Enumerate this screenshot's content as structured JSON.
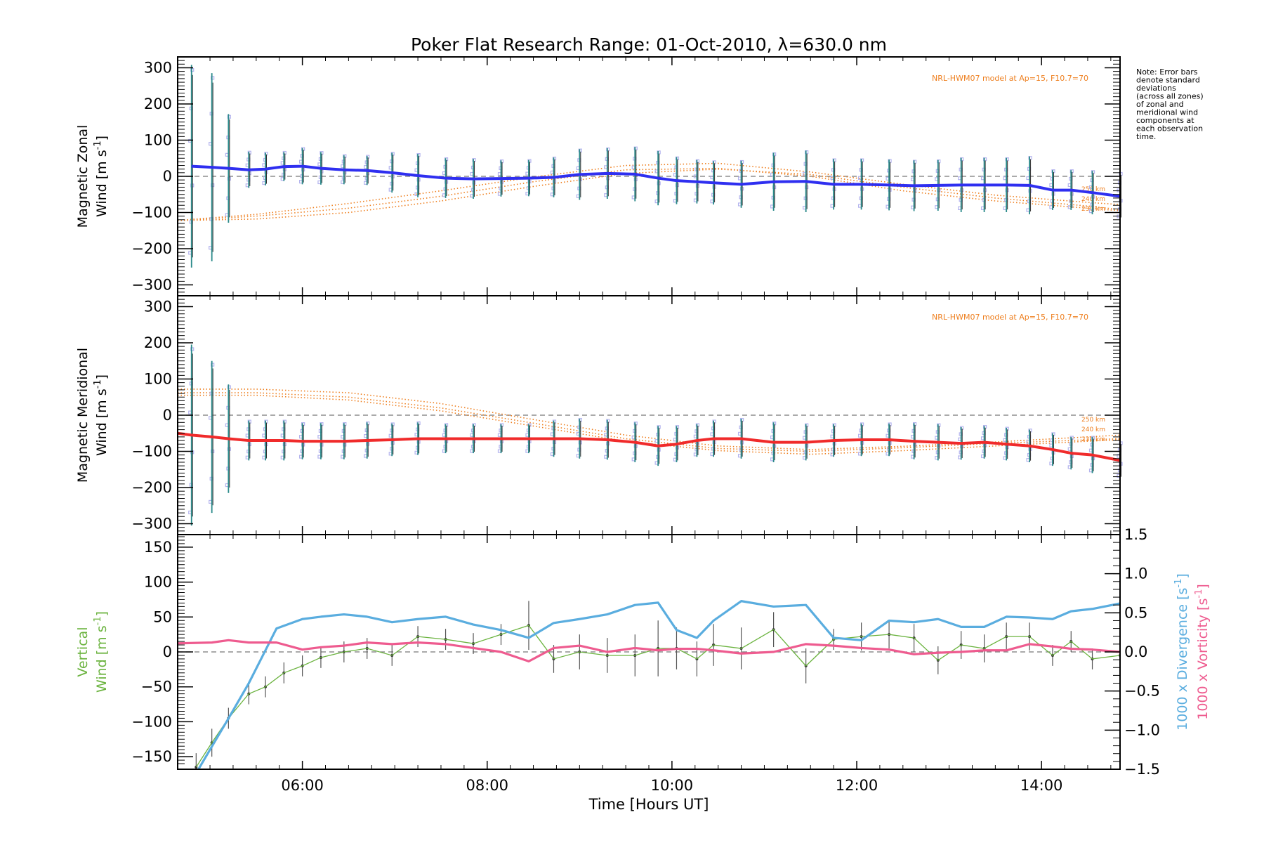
{
  "title": "Poker Flat Research Range: 01-Oct-2010, λ=630.0 nm",
  "note": [
    "Note: Error bars",
    "denote standard",
    "deviations",
    "(across all zones)",
    "of zonal and",
    "meridional wind",
    "components at",
    "each observation",
    "time."
  ],
  "colors": {
    "zonal": "#2f2ff0",
    "meridional": "#f02b2b",
    "model": "#ee7f1f",
    "vertical": "#6bb33f",
    "divergence": "#5aaddf",
    "vorticity": "#ee5b8f",
    "errorbar": "#555555",
    "scatter": "#b4b4ee"
  },
  "chart_data": [
    {
      "type": "line",
      "id": "zonal",
      "ylabel_line1": "Magnetic Zonal",
      "ylabel_line2": "Wind [m s",
      "ylabel_sup": "-1",
      "ylabel_close": "]",
      "ylim": [
        -330,
        330
      ],
      "xlim": [
        4.65,
        14.85
      ],
      "yticks": [
        300,
        200,
        100,
        0,
        -100,
        -200,
        -300
      ],
      "model_label": "NRL-HWM07 model at Ap=15, F10.7=70",
      "model_heights": [
        "250 km",
        "240 km",
        "230 km"
      ],
      "x": [
        4.8,
        5.02,
        5.2,
        5.42,
        5.6,
        5.8,
        6.0,
        6.2,
        6.45,
        6.7,
        6.97,
        7.25,
        7.55,
        7.85,
        8.15,
        8.45,
        8.72,
        9.0,
        9.3,
        9.6,
        9.85,
        10.05,
        10.27,
        10.45,
        10.75,
        11.1,
        11.45,
        11.75,
        12.05,
        12.35,
        12.62,
        12.88,
        13.13,
        13.38,
        13.62,
        13.87,
        14.12,
        14.32,
        14.55,
        14.85
      ],
      "values": [
        28,
        25,
        22,
        18,
        20,
        27,
        28,
        22,
        18,
        16,
        10,
        2,
        -5,
        -7,
        -6,
        -5,
        -3,
        5,
        8,
        6,
        -5,
        -12,
        -15,
        -18,
        -22,
        -15,
        -14,
        -22,
        -22,
        -24,
        -26,
        -25,
        -24,
        -24,
        -24,
        -25,
        -38,
        -38,
        -45,
        -55
      ],
      "errors": [
        280,
        260,
        150,
        50,
        45,
        40,
        50,
        45,
        40,
        40,
        55,
        60,
        55,
        55,
        50,
        50,
        55,
        70,
        70,
        75,
        75,
        65,
        60,
        60,
        65,
        80,
        85,
        70,
        70,
        70,
        70,
        70,
        75,
        75,
        75,
        80,
        55,
        55,
        60,
        65
      ],
      "model_series": [
        {
          "x": [
            4.65,
            5.5,
            6.5,
            7.5,
            8.5,
            9.5,
            10.5,
            11.5,
            12.5,
            13.5,
            14.5,
            14.85
          ],
          "values": [
            -122,
            -110,
            -88,
            -55,
            -15,
            18,
            22,
            0,
            -40,
            -68,
            -88,
            -95
          ]
        },
        {
          "x": [
            4.65,
            5.5,
            6.5,
            7.5,
            8.5,
            9.5,
            10.5,
            11.5,
            12.5,
            13.5,
            14.5,
            14.85
          ],
          "values": [
            -122,
            -118,
            -100,
            -68,
            -28,
            8,
            20,
            5,
            -30,
            -60,
            -82,
            -92
          ]
        },
        {
          "x": [
            4.65,
            5.5,
            6.5,
            7.5,
            8.5,
            9.5,
            10.5,
            11.5,
            12.5,
            13.5,
            14.5,
            14.85
          ],
          "values": [
            -122,
            -105,
            -75,
            -40,
            -2,
            30,
            36,
            12,
            -22,
            -52,
            -72,
            -78
          ]
        }
      ]
    },
    {
      "type": "line",
      "id": "meridional",
      "ylabel_line1": "Magnetic Meridional",
      "ylabel_line2": "Wind [m s",
      "ylabel_sup": "-1",
      "ylabel_close": "]",
      "ylim": [
        -330,
        330
      ],
      "xlim": [
        4.65,
        14.85
      ],
      "yticks": [
        300,
        200,
        100,
        0,
        -100,
        -200,
        -300
      ],
      "model_label": "NRL-HWM07 model at Ap=15, F10.7=70",
      "model_heights": [
        "250 km",
        "240 km",
        "230 km"
      ],
      "x": [
        4.65,
        4.8,
        5.02,
        5.2,
        5.42,
        5.6,
        5.8,
        6.0,
        6.2,
        6.45,
        6.7,
        6.97,
        7.25,
        7.55,
        7.85,
        8.15,
        8.45,
        8.72,
        9.0,
        9.3,
        9.6,
        9.85,
        10.05,
        10.27,
        10.45,
        10.75,
        11.1,
        11.45,
        11.75,
        12.05,
        12.35,
        12.62,
        12.88,
        13.13,
        13.38,
        13.62,
        13.87,
        14.12,
        14.32,
        14.55,
        14.85
      ],
      "values": [
        -50,
        -55,
        -60,
        -65,
        -70,
        -70,
        -70,
        -72,
        -72,
        -72,
        -70,
        -68,
        -65,
        -65,
        -65,
        -65,
        -65,
        -65,
        -65,
        -68,
        -75,
        -85,
        -80,
        -70,
        -65,
        -65,
        -75,
        -75,
        -70,
        -68,
        -68,
        -72,
        -75,
        -78,
        -75,
        -80,
        -85,
        -95,
        -105,
        -110,
        -125
      ],
      "errors": [
        0,
        250,
        210,
        150,
        55,
        55,
        55,
        50,
        50,
        50,
        50,
        45,
        45,
        40,
        40,
        40,
        40,
        50,
        55,
        55,
        55,
        55,
        50,
        45,
        50,
        55,
        55,
        50,
        45,
        45,
        45,
        50,
        50,
        45,
        45,
        45,
        45,
        45,
        45,
        50,
        50
      ],
      "model_series": [
        {
          "x": [
            4.65,
            5.5,
            6.5,
            7.5,
            8.5,
            9.5,
            10.5,
            11.5,
            12.5,
            13.5,
            14.5,
            14.85
          ],
          "values": [
            62,
            62,
            50,
            20,
            -22,
            -65,
            -92,
            -100,
            -90,
            -78,
            -68,
            -65
          ]
        },
        {
          "x": [
            4.65,
            5.5,
            6.5,
            7.5,
            8.5,
            9.5,
            10.5,
            11.5,
            12.5,
            13.5,
            14.5,
            14.85
          ],
          "values": [
            55,
            55,
            42,
            12,
            -30,
            -72,
            -98,
            -108,
            -98,
            -85,
            -72,
            -68
          ]
        },
        {
          "x": [
            4.65,
            5.5,
            6.5,
            7.5,
            8.5,
            9.5,
            10.5,
            11.5,
            12.5,
            13.5,
            14.5,
            14.85
          ],
          "values": [
            72,
            72,
            62,
            32,
            -12,
            -55,
            -85,
            -95,
            -86,
            -74,
            -60,
            -55
          ]
        }
      ]
    },
    {
      "type": "line",
      "id": "vertical",
      "ylabel_line1": "Vertical",
      "ylabel_line2": "Wind [m s",
      "ylabel_sup": "-1",
      "ylabel_close": "]",
      "ylim": [
        -168,
        168
      ],
      "xlim": [
        4.65,
        14.85
      ],
      "yticks": [
        150,
        100,
        50,
        0,
        -50,
        -100,
        -150
      ],
      "xticks": [
        6,
        8,
        10,
        12,
        14
      ],
      "xtick_labels": [
        "06:00",
        "08:00",
        "10:00",
        "12:00",
        "14:00"
      ],
      "xlabel": "Time [Hours UT]",
      "right_axis": {
        "ylim": [
          -1.5,
          1.5
        ],
        "yticks": [
          1.5,
          1.0,
          0.5,
          0.0,
          -0.5,
          -1.0,
          -1.5
        ],
        "ytick_labels": [
          "1.5",
          "1.0",
          "0.5",
          "0.0",
          "−0.5",
          "−1.0",
          "−1.5"
        ],
        "divergence_label": "1000 x Divergence [s",
        "vorticity_label": "1000 x Vorticity [s",
        "sup": "-1",
        "close": "]"
      },
      "series": [
        {
          "name": "vertical",
          "x": [
            4.85,
            5.02,
            5.2,
            5.42,
            5.6,
            5.8,
            6.0,
            6.2,
            6.45,
            6.7,
            6.97,
            7.25,
            7.55,
            7.85,
            8.15,
            8.45,
            8.72,
            9.0,
            9.3,
            9.6,
            9.85,
            10.05,
            10.27,
            10.45,
            10.75,
            11.1,
            11.45,
            11.75,
            12.05,
            12.35,
            12.62,
            12.88,
            13.13,
            13.38,
            13.62,
            13.87,
            14.12,
            14.32,
            14.55,
            14.85
          ],
          "values": [
            -165,
            -130,
            -95,
            -60,
            -50,
            -30,
            -20,
            -8,
            0,
            5,
            -5,
            22,
            18,
            12,
            25,
            38,
            -10,
            0,
            -5,
            -5,
            5,
            5,
            -10,
            10,
            5,
            32,
            -20,
            18,
            22,
            25,
            20,
            -12,
            10,
            5,
            22,
            22,
            -5,
            15,
            -10,
            -5
          ],
          "errors": [
            20,
            20,
            15,
            15,
            15,
            15,
            15,
            15,
            15,
            15,
            15,
            15,
            15,
            15,
            15,
            35,
            20,
            25,
            25,
            30,
            40,
            30,
            25,
            30,
            30,
            25,
            25,
            15,
            20,
            20,
            20,
            20,
            20,
            20,
            20,
            20,
            15,
            15,
            15,
            15
          ]
        },
        {
          "name": "divergence",
          "x": [
            4.85,
            5.2,
            5.42,
            5.72,
            6.0,
            6.2,
            6.45,
            6.7,
            6.97,
            7.25,
            7.55,
            7.85,
            8.15,
            8.45,
            8.72,
            9.0,
            9.3,
            9.6,
            9.85,
            10.05,
            10.27,
            10.45,
            10.75,
            11.1,
            11.45,
            11.75,
            12.05,
            12.35,
            12.62,
            12.88,
            13.13,
            13.38,
            13.62,
            13.87,
            14.12,
            14.32,
            14.55,
            14.85
          ],
          "values": [
            -1.55,
            -0.85,
            -0.4,
            0.3,
            0.42,
            0.45,
            0.48,
            0.45,
            0.38,
            0.42,
            0.45,
            0.35,
            0.28,
            0.18,
            0.37,
            0.42,
            0.48,
            0.6,
            0.63,
            0.28,
            0.18,
            0.4,
            0.65,
            0.58,
            0.6,
            0.18,
            0.15,
            0.4,
            0.38,
            0.42,
            0.32,
            0.32,
            0.45,
            0.44,
            0.42,
            0.52,
            0.55,
            0.62
          ]
        },
        {
          "name": "vorticity",
          "x": [
            4.65,
            5.02,
            5.2,
            5.42,
            5.72,
            6.0,
            6.2,
            6.45,
            6.7,
            6.97,
            7.25,
            7.55,
            7.85,
            8.15,
            8.45,
            8.72,
            9.0,
            9.3,
            9.6,
            9.85,
            10.05,
            10.27,
            10.45,
            10.75,
            11.1,
            11.45,
            11.75,
            12.05,
            12.35,
            12.62,
            12.88,
            13.13,
            13.38,
            13.62,
            13.87,
            14.12,
            14.32,
            14.55,
            14.85
          ],
          "values": [
            0.11,
            0.12,
            0.15,
            0.12,
            0.12,
            0.03,
            0.06,
            0.08,
            0.12,
            0.1,
            0.12,
            0.1,
            0.05,
            0.0,
            -0.12,
            0.05,
            0.08,
            0.0,
            0.05,
            0.02,
            0.04,
            0.04,
            0.02,
            -0.02,
            0.0,
            0.1,
            0.08,
            0.05,
            0.03,
            -0.03,
            -0.01,
            0.0,
            0.02,
            0.02,
            0.1,
            0.07,
            0.04,
            0.03,
            0.0
          ]
        }
      ]
    }
  ]
}
